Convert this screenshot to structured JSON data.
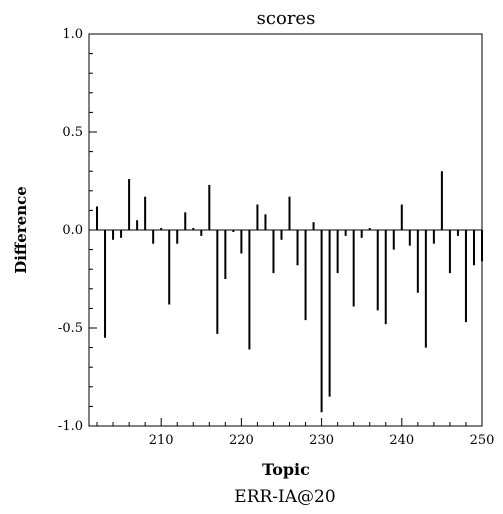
{
  "chart_data": {
    "type": "bar",
    "title": "scores",
    "xlabel": "Topic",
    "ylabel": "Difference",
    "caption": "ERR-IA@20",
    "xlim": [
      201,
      250
    ],
    "ylim": [
      -1.0,
      1.0
    ],
    "xticks": [
      210,
      220,
      230,
      240,
      250
    ],
    "xtick_labels": [
      "210",
      "220",
      "230",
      "240",
      "250"
    ],
    "yticks": [
      -1.0,
      -0.5,
      0.0,
      0.5,
      1.0
    ],
    "ytick_labels": [
      "-1.0",
      "-0.5",
      "0.0",
      "0.5",
      "1.0"
    ],
    "grid": false,
    "x": [
      202,
      203,
      204,
      205,
      206,
      207,
      208,
      209,
      210,
      211,
      212,
      213,
      214,
      215,
      216,
      217,
      218,
      219,
      220,
      221,
      222,
      223,
      224,
      225,
      226,
      227,
      228,
      229,
      230,
      231,
      232,
      233,
      234,
      235,
      236,
      237,
      238,
      239,
      240,
      241,
      242,
      243,
      244,
      245,
      246,
      247,
      248,
      249,
      250
    ],
    "values": [
      0.12,
      -0.55,
      -0.05,
      -0.04,
      0.26,
      0.05,
      0.17,
      -0.07,
      0.01,
      -0.38,
      -0.07,
      0.09,
      0.01,
      -0.03,
      0.23,
      -0.53,
      -0.25,
      -0.01,
      -0.12,
      -0.61,
      0.13,
      0.08,
      -0.22,
      -0.05,
      0.17,
      -0.18,
      -0.46,
      0.04,
      -0.93,
      -0.85,
      -0.22,
      -0.03,
      -0.39,
      -0.04,
      0.01,
      -0.41,
      -0.48,
      -0.1,
      0.13,
      -0.08,
      -0.32,
      -0.6,
      -0.07,
      0.3,
      -0.22,
      -0.03,
      -0.47,
      -0.18,
      -0.16
    ]
  }
}
